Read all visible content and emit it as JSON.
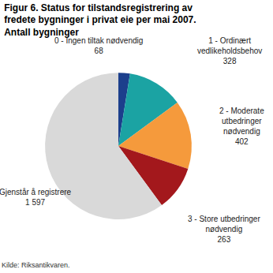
{
  "chart_data": {
    "type": "pie",
    "title": "Figur 6. Status for tilstandsregistrering av fredete bygninger i privat eie per mai 2007. Antall bygninger",
    "categories": [
      "0 - Ingen tiltak nødvendig",
      "1 - Ordinært vedlikeholdsbehov",
      "2 - Moderate utbedringer nødvendig",
      "3 - Store utbedringer nødvendig",
      "Gjenstår å registrere"
    ],
    "values": [
      68,
      328,
      402,
      263,
      1597
    ],
    "value_labels": [
      "68",
      "328",
      "402",
      "263",
      "1 597"
    ],
    "colors": [
      "#1c3f8c",
      "#1ba3a3",
      "#f59a3c",
      "#a3181c",
      "#d9d9d9"
    ],
    "data_labels": true,
    "source": "Kilde: Riksantikvaren."
  }
}
